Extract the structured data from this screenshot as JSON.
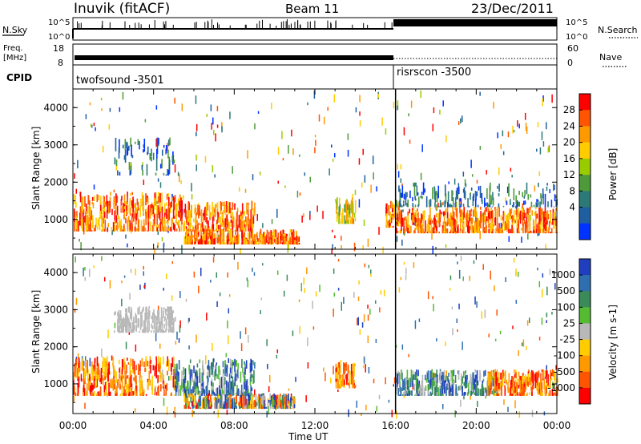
{
  "header": {
    "station": "Inuvik (fitACF)",
    "beam": "Beam 11",
    "date": "23/Dec/2011"
  },
  "top_panels": {
    "nsky_label": "N.Sky",
    "nsky_ticks": [
      "10^5",
      "10^0"
    ],
    "nsearch_label": "N.Search",
    "nsearch_ticks": [
      "10^5",
      "10^0"
    ],
    "freq_label_1": "Freq.",
    "freq_label_2": "[MHz]",
    "freq_ticks": [
      "18",
      "8"
    ],
    "nave_label": "Nave",
    "nave_ticks": [
      "60",
      "0"
    ],
    "cpid_label": "CPID",
    "cpid_segments": [
      {
        "name": "twofsound -3501",
        "start_hour": 0,
        "end_hour": 16
      },
      {
        "name": "risrscon -3500",
        "start_hour": 16,
        "end_hour": 24
      }
    ]
  },
  "chart_data": [
    {
      "type": "heatmap",
      "title": "",
      "quantity": "Power",
      "colorbar_label": "Power [dB]",
      "colorbar_ticks": [
        "28",
        "24",
        "20",
        "16",
        "12",
        "8",
        "4"
      ],
      "colorbar_colors": [
        "#ff0000",
        "#ff5500",
        "#ff9900",
        "#ffcc00",
        "#99cc00",
        "#4e9a3a",
        "#2b7a78",
        "#1f5fa0",
        "#0033ff"
      ],
      "xlabel": "Time UT",
      "ylabel": "Slant Range [km]",
      "xlim_hours": [
        0,
        24
      ],
      "ylim_km": [
        200,
        4500
      ],
      "y_ticks": [
        "4000",
        "3000",
        "2000",
        "1000"
      ],
      "echo_regions": [
        {
          "t0": 0.0,
          "t1": 5.5,
          "r0": 700,
          "r1": 1750,
          "level": "high"
        },
        {
          "t0": 5.5,
          "t1": 9.0,
          "r0": 700,
          "r1": 1500,
          "level": "high"
        },
        {
          "t0": 5.5,
          "t1": 11.2,
          "r0": 350,
          "r1": 750,
          "level": "high"
        },
        {
          "t0": 13.0,
          "t1": 14.0,
          "r0": 900,
          "r1": 1600,
          "level": "medium"
        },
        {
          "t0": 15.5,
          "t1": 16.1,
          "r0": 800,
          "r1": 1500,
          "level": "high"
        },
        {
          "t0": 16.0,
          "t1": 24.0,
          "r0": 650,
          "r1": 1350,
          "level": "high"
        },
        {
          "t0": 2.0,
          "t1": 5.0,
          "r0": 2200,
          "r1": 3200,
          "level": "low"
        },
        {
          "t0": 16.0,
          "t1": 24.0,
          "r0": 1350,
          "r1": 2000,
          "level": "low"
        }
      ]
    },
    {
      "type": "heatmap",
      "title": "",
      "quantity": "Velocity",
      "colorbar_label": "Velocity [m s-1]",
      "colorbar_ticks": [
        "1000",
        "500",
        "100",
        "25",
        "-25",
        "-100",
        "-500",
        "-1000"
      ],
      "colorbar_colors": [
        "#1f3fbf",
        "#2f6fb0",
        "#3a8a5a",
        "#55bb33",
        "#b8b8b8",
        "#ffcc00",
        "#ff9900",
        "#ff5500",
        "#ff0000"
      ],
      "xlabel": "Time UT",
      "ylabel": "Slant Range [km]",
      "xlim_hours": [
        0,
        24
      ],
      "ylim_km": [
        200,
        4500
      ],
      "x_ticks": [
        "00:00",
        "04:00",
        "08:00",
        "12:00",
        "16:00",
        "20:00",
        "00:00"
      ],
      "y_ticks": [
        "4000",
        "3000",
        "2000",
        "1000"
      ],
      "echo_regions": [
        {
          "t0": 0.0,
          "t1": 5.0,
          "r0": 700,
          "r1": 1750,
          "level": "negative"
        },
        {
          "t0": 5.0,
          "t1": 9.0,
          "r0": 700,
          "r1": 1700,
          "level": "positive"
        },
        {
          "t0": 5.5,
          "t1": 11.0,
          "r0": 350,
          "r1": 750,
          "level": "mixed"
        },
        {
          "t0": 13.0,
          "t1": 14.0,
          "r0": 900,
          "r1": 1600,
          "level": "negative"
        },
        {
          "t0": 16.0,
          "t1": 21.0,
          "r0": 700,
          "r1": 1400,
          "level": "positive"
        },
        {
          "t0": 20.5,
          "t1": 24.0,
          "r0": 700,
          "r1": 1400,
          "level": "negative"
        },
        {
          "t0": 2.0,
          "t1": 5.0,
          "r0": 2400,
          "r1": 3100,
          "level": "near-zero"
        }
      ]
    }
  ]
}
